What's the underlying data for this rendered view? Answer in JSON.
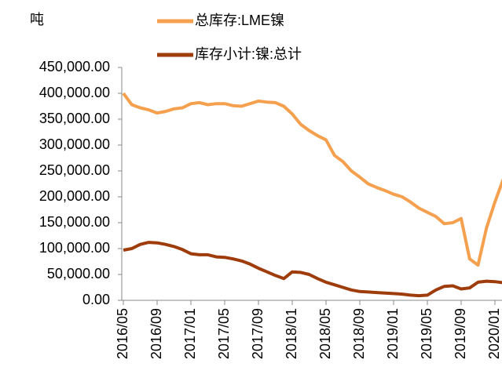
{
  "chart_data": {
    "type": "line",
    "y_label": "吨",
    "categories": [
      "2016/05",
      null,
      null,
      null,
      "2016/09",
      null,
      null,
      null,
      "2017/01",
      null,
      null,
      null,
      "2017/05",
      null,
      null,
      null,
      "2017/09",
      null,
      null,
      null,
      "2018/01",
      null,
      null,
      null,
      "2018/05",
      null,
      null,
      null,
      "2018/09",
      null,
      null,
      null,
      "2019/01",
      null,
      null,
      null,
      "2019/05",
      null,
      null,
      null,
      "2019/09",
      null,
      null,
      null,
      "2020/01",
      null
    ],
    "series": [
      {
        "name": "总库存:LME镍",
        "color": "#f5a04e",
        "values": [
          400000,
          378000,
          372000,
          368000,
          362000,
          365000,
          370000,
          372000,
          380000,
          382000,
          378000,
          380000,
          380000,
          376000,
          375000,
          380000,
          385000,
          383000,
          382000,
          375000,
          360000,
          340000,
          328000,
          318000,
          310000,
          280000,
          268000,
          250000,
          238000,
          225000,
          218000,
          212000,
          205000,
          200000,
          190000,
          178000,
          170000,
          162000,
          148000,
          150000,
          158000,
          80000,
          68000,
          140000,
          190000,
          235000
        ]
      },
      {
        "name": "库存小计:镍:总计",
        "color": "#9e3c0c",
        "values": [
          97000,
          100000,
          108000,
          112000,
          111000,
          108000,
          104000,
          98000,
          90000,
          88000,
          88000,
          84000,
          83000,
          80000,
          76000,
          70000,
          62000,
          55000,
          48000,
          42000,
          55000,
          54000,
          50000,
          42000,
          35000,
          30000,
          25000,
          20000,
          17000,
          16000,
          15000,
          14000,
          13000,
          12000,
          10000,
          9000,
          10000,
          20000,
          27000,
          28000,
          22000,
          24000,
          35000,
          37000,
          36000,
          34000
        ]
      }
    ],
    "ylim": [
      0,
      450000
    ],
    "yticks": [
      {
        "value": 0,
        "label": "0.00"
      },
      {
        "value": 50000,
        "label": "50,000.00"
      },
      {
        "value": 100000,
        "label": "100,000.00"
      },
      {
        "value": 150000,
        "label": "150,000.00"
      },
      {
        "value": 200000,
        "label": "200,000.00"
      },
      {
        "value": 250000,
        "label": "250,000.00"
      },
      {
        "value": 300000,
        "label": "300,000.00"
      },
      {
        "value": 350000,
        "label": "350,000.00"
      },
      {
        "value": 400000,
        "label": "400,000.00"
      },
      {
        "value": 450000,
        "label": "450,000.00"
      }
    ]
  }
}
